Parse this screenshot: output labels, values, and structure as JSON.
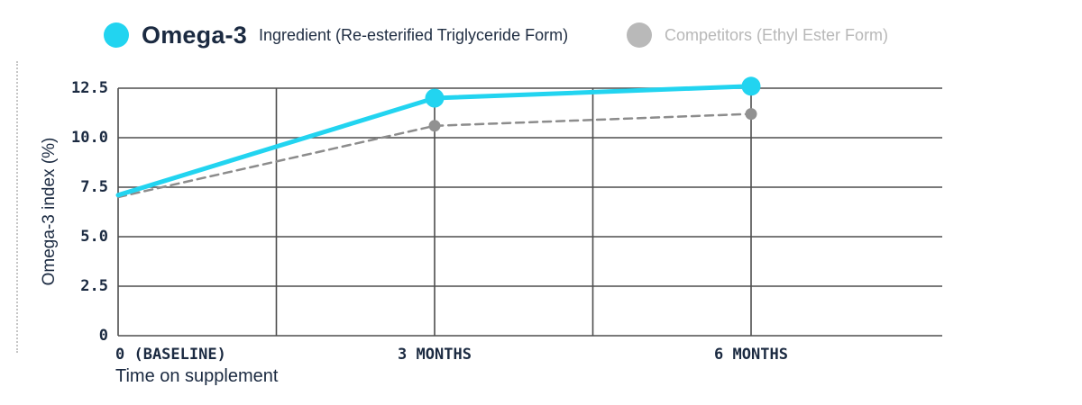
{
  "legend": {
    "omega3": {
      "title": "Omega-3",
      "subtitle": "Ingredient (Re-esterified Triglyceride Form)",
      "dot_color": "#22d4f0"
    },
    "competitors": {
      "label": "Competitors (Ethyl Ester Form)",
      "dot_color": "#b9b9b9"
    }
  },
  "colors": {
    "accent_cyan": "#22d4f0",
    "text_navy": "#1b2a41",
    "gridline": "#4d4d4d",
    "competitor_gray": "#8c8c8c"
  },
  "chart_data": {
    "type": "line",
    "title": "",
    "xlabel": "Time on supplement",
    "ylabel": "Omega-3 index (%)",
    "ylim": [
      0,
      12.5
    ],
    "grid": true,
    "y_ticks": [
      {
        "value": 0,
        "label": "0"
      },
      {
        "value": 2.5,
        "label": "2.5"
      },
      {
        "value": 5.0,
        "label": "5.0"
      },
      {
        "value": 7.5,
        "label": "7.5"
      },
      {
        "value": 10.0,
        "label": "10.0"
      },
      {
        "value": 12.5,
        "label": "12.5"
      }
    ],
    "x_ticks": [
      {
        "month": 0,
        "label": "0 (BASELINE)",
        "align": "left"
      },
      {
        "month": 3,
        "label": "3 MONTHS",
        "align": "center"
      },
      {
        "month": 6,
        "label": "6 MONTHS",
        "align": "center"
      }
    ],
    "x_gridlines_months": [
      0,
      1.5,
      3,
      4.5,
      6
    ],
    "x_range_months": [
      0,
      7.8
    ],
    "series": [
      {
        "name": "Competitors (Ethyl Ester Form)",
        "months": [
          0,
          3,
          6
        ],
        "values": [
          7.0,
          10.6,
          11.2
        ],
        "color": "#8c8c8c",
        "marker_color": "#919191",
        "style": "dashed",
        "stroke_width": 2.5,
        "marker_radius": 6.5,
        "markers": [
          false,
          true,
          true
        ]
      },
      {
        "name": "Omega-3 Ingredient (Re-esterified Triglyceride Form)",
        "months": [
          0,
          3,
          6
        ],
        "values": [
          7.1,
          12.0,
          12.6
        ],
        "color": "#22d4f0",
        "marker_color": "#22d4f0",
        "style": "solid",
        "stroke_width": 5,
        "marker_radius": 10.5,
        "markers": [
          false,
          true,
          true
        ]
      }
    ]
  }
}
